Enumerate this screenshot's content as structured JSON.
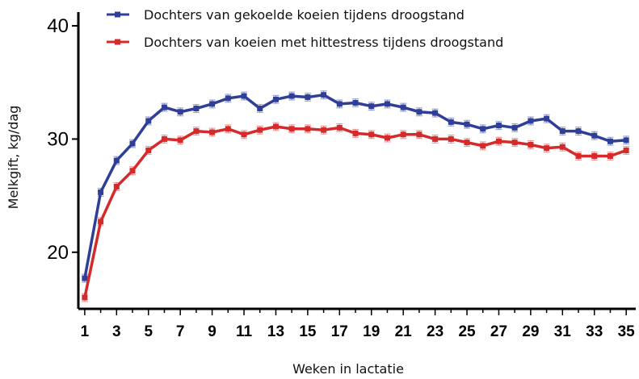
{
  "chart_data": {
    "type": "line",
    "title": "",
    "xlabel": "Weken in lactatie",
    "ylabel": "Melkgift, kg/dag",
    "xlim": [
      0.6,
      35.6
    ],
    "ylim": [
      15,
      41
    ],
    "x_ticks": [
      1,
      3,
      5,
      7,
      9,
      11,
      13,
      15,
      17,
      19,
      21,
      23,
      25,
      27,
      29,
      31,
      33,
      35
    ],
    "y_ticks": [
      20,
      30,
      40
    ],
    "legend_position": "top-left",
    "grid": false,
    "error_bars": true,
    "x": [
      1,
      2,
      3,
      4,
      5,
      6,
      7,
      8,
      9,
      10,
      11,
      12,
      13,
      14,
      15,
      16,
      17,
      18,
      19,
      20,
      21,
      22,
      23,
      24,
      25,
      26,
      27,
      28,
      29,
      30,
      31,
      32,
      33,
      34,
      35
    ],
    "series": [
      {
        "name": "Dochters van gekoelde koeien tijdens droogstand",
        "color": "#2f3f98",
        "values": [
          17.7,
          25.3,
          28.1,
          29.6,
          31.6,
          32.8,
          32.4,
          32.7,
          33.1,
          33.6,
          33.8,
          32.7,
          33.5,
          33.8,
          33.7,
          33.9,
          33.1,
          33.2,
          32.9,
          33.1,
          32.8,
          32.4,
          32.3,
          31.5,
          31.3,
          30.9,
          31.2,
          31.0,
          31.6,
          31.8,
          30.7,
          30.7,
          30.3,
          29.8,
          29.9
        ]
      },
      {
        "name": "Dochters van koeien met hittestress tijdens droogstand",
        "color": "#d62a2a",
        "values": [
          16.0,
          22.7,
          25.8,
          27.2,
          29.0,
          30.0,
          29.9,
          30.7,
          30.6,
          30.9,
          30.4,
          30.8,
          31.1,
          30.9,
          30.9,
          30.8,
          31.0,
          30.5,
          30.4,
          30.1,
          30.4,
          30.4,
          30.0,
          30.0,
          29.7,
          29.4,
          29.8,
          29.7,
          29.5,
          29.2,
          29.3,
          28.5,
          28.5,
          28.5,
          29.0
        ]
      }
    ]
  }
}
